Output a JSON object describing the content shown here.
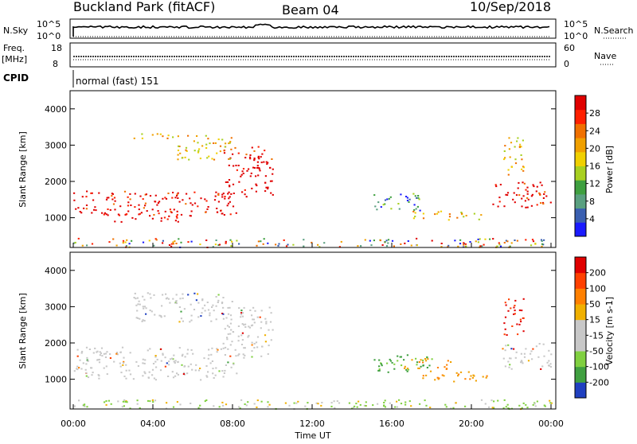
{
  "header": {
    "site": "Buckland Park (fitACF)",
    "beam": "Beam 04",
    "date": "10/Sep/2018"
  },
  "strips": {
    "nsky_label": "N.Sky",
    "nsearch_label": "N.Search",
    "nsky_ticks": [
      "10^5",
      "10^0"
    ],
    "nsearch_ticks": [
      "10^5",
      "10^0"
    ],
    "freq_label": "Freq.",
    "freq_unit": "[MHz]",
    "freq_ticks": [
      "18",
      "8"
    ],
    "nave_label": "Nave",
    "nave_ticks": [
      "60",
      "0"
    ],
    "cpid_label": "CPID",
    "cpid_value": "normal (fast) 151"
  },
  "colors": {
    "power": [
      "#1a1aff",
      "#3a5fb0",
      "#5aa080",
      "#3fa040",
      "#a8d020",
      "#f0d000",
      "#f0a000",
      "#f07000",
      "#ff2000",
      "#e00000"
    ],
    "velocity": [
      "#e00000",
      "#ff4000",
      "#ff8000",
      "#f0b000",
      "#c8c8c8",
      "#c8c8c8",
      "#80d040",
      "#40a040",
      "#2040c0"
    ]
  },
  "chart_data": [
    {
      "type": "heatmap",
      "panel": "power",
      "ylabel": "Slant Range [km]",
      "xlabel": "Time UT",
      "x_ticks": [
        "00:00",
        "04:00",
        "08:00",
        "12:00",
        "16:00",
        "20:00",
        "00:00"
      ],
      "x_range_hours": [
        0,
        24
      ],
      "y_ticks": [
        1000,
        2000,
        3000,
        4000
      ],
      "ylim": [
        180,
        4500
      ],
      "colorbar_label": "Power [dB]",
      "colorbar_ticks": [
        4,
        8,
        12,
        16,
        20,
        24,
        28
      ],
      "colorbar_range": [
        0,
        32
      ],
      "regions": [
        {
          "t0": 0.0,
          "t1": 8.2,
          "r0": 1100,
          "r1": 1750,
          "level": "high"
        },
        {
          "t0": 1.5,
          "t1": 6.0,
          "r0": 900,
          "r1": 1150,
          "level": "high"
        },
        {
          "t0": 7.5,
          "t1": 10.0,
          "r0": 1600,
          "r1": 3000,
          "level": "high"
        },
        {
          "t0": 5.2,
          "t1": 8.0,
          "r0": 2600,
          "r1": 3300,
          "level": "mid"
        },
        {
          "t0": 3.0,
          "t1": 5.0,
          "r0": 3200,
          "r1": 3400,
          "level": "mid"
        },
        {
          "t0": 15.0,
          "t1": 17.5,
          "r0": 1200,
          "r1": 1700,
          "level": "low"
        },
        {
          "t0": 17.0,
          "t1": 20.5,
          "r0": 950,
          "r1": 1200,
          "level": "mid"
        },
        {
          "t0": 21.0,
          "t1": 24.0,
          "r0": 1300,
          "r1": 2000,
          "level": "high"
        },
        {
          "t0": 21.6,
          "t1": 22.6,
          "r0": 2200,
          "r1": 3300,
          "level": "mid"
        },
        {
          "t0": 0.0,
          "t1": 24.0,
          "r0": 200,
          "r1": 450,
          "level": "mixed"
        }
      ]
    },
    {
      "type": "heatmap",
      "panel": "velocity",
      "ylabel": "Slant Range [km]",
      "xlabel": "Time UT",
      "x_ticks": [
        "00:00",
        "04:00",
        "08:00",
        "12:00",
        "16:00",
        "20:00",
        "00:00"
      ],
      "x_range_hours": [
        0,
        24
      ],
      "y_ticks": [
        1000,
        2000,
        3000,
        4000
      ],
      "ylim": [
        180,
        4500
      ],
      "colorbar_label": "Velocity [m s-1]",
      "colorbar_ticks": [
        "200",
        "100",
        "50",
        "15",
        "-15",
        "-50",
        "-100",
        "-200"
      ],
      "colorbar_range": [
        -250,
        250
      ],
      "regions": [
        {
          "t0": 0.0,
          "t1": 8.2,
          "r0": 1000,
          "r1": 1900,
          "level": "grey"
        },
        {
          "t0": 7.5,
          "t1": 10.0,
          "r0": 1600,
          "r1": 3000,
          "level": "grey"
        },
        {
          "t0": 3.0,
          "t1": 8.0,
          "r0": 2600,
          "r1": 3400,
          "level": "grey"
        },
        {
          "t0": 15.0,
          "t1": 18.0,
          "r0": 1200,
          "r1": 1700,
          "level": "green"
        },
        {
          "t0": 16.5,
          "t1": 19.0,
          "r0": 1300,
          "r1": 1600,
          "level": "orange"
        },
        {
          "t0": 17.5,
          "t1": 21.0,
          "r0": 950,
          "r1": 1250,
          "level": "orange"
        },
        {
          "t0": 21.5,
          "t1": 24.0,
          "r0": 1300,
          "r1": 2000,
          "level": "grey"
        },
        {
          "t0": 21.6,
          "t1": 22.6,
          "r0": 2200,
          "r1": 3300,
          "level": "red"
        },
        {
          "t0": 0.0,
          "t1": 24.0,
          "r0": 200,
          "r1": 450,
          "level": "greenish"
        }
      ]
    }
  ]
}
